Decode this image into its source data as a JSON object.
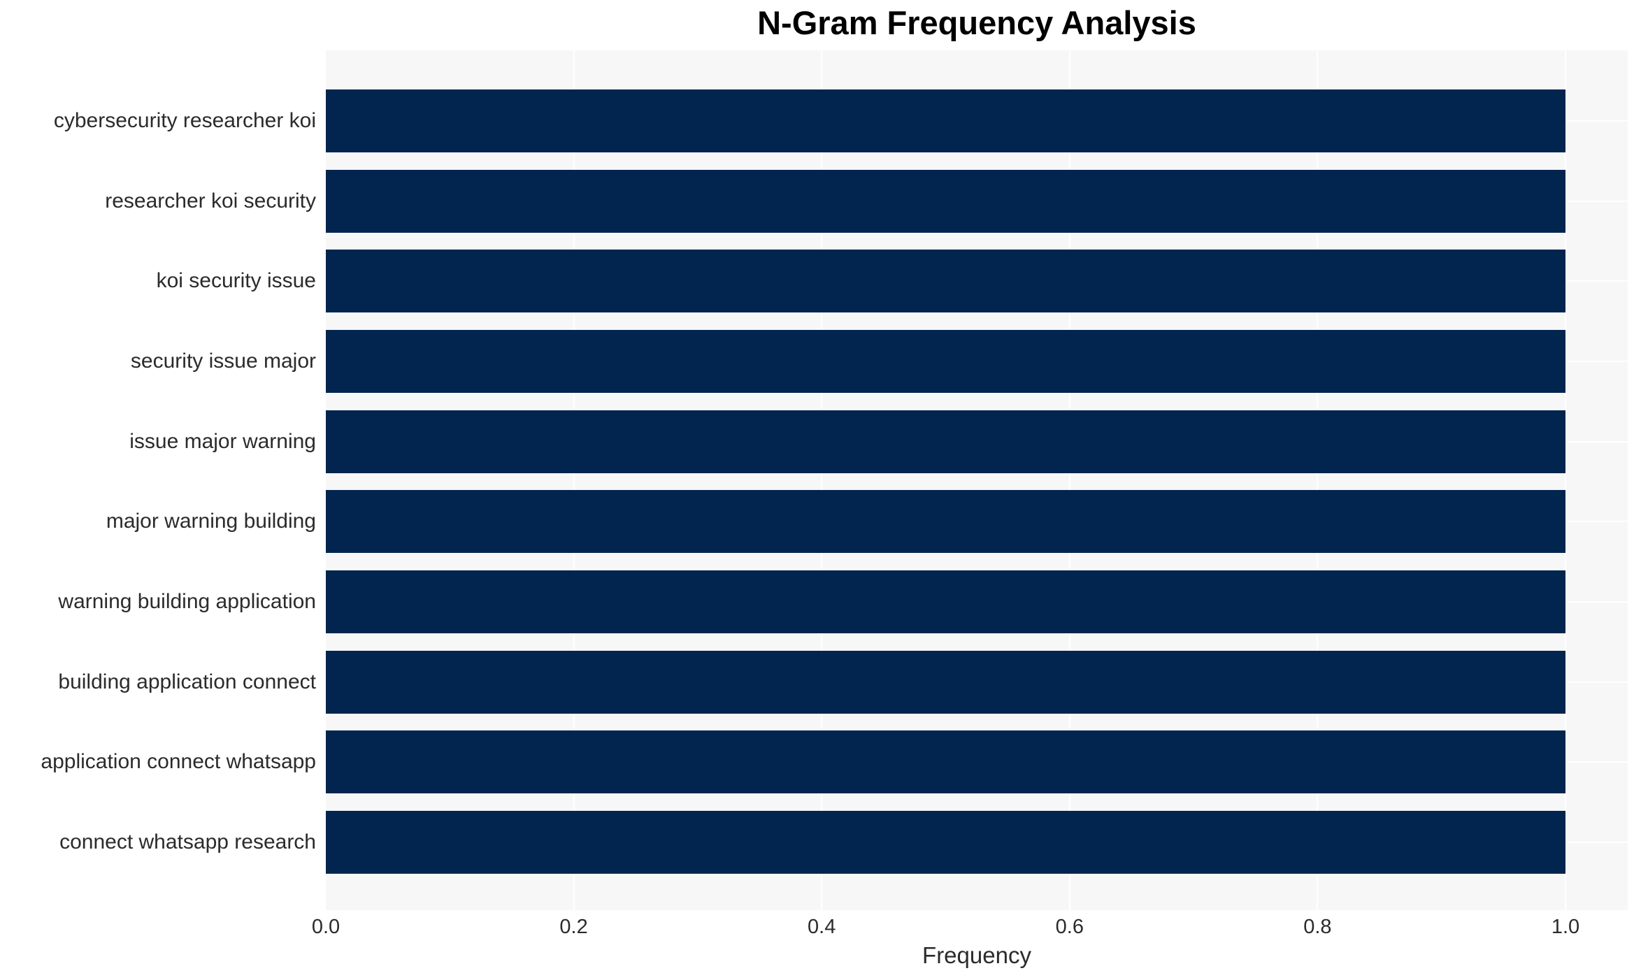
{
  "chart_data": {
    "type": "bar",
    "orientation": "horizontal",
    "title": "N-Gram Frequency Analysis",
    "xlabel": "Frequency",
    "ylabel": "",
    "categories": [
      "cybersecurity researcher koi",
      "researcher koi security",
      "koi security issue",
      "security issue major",
      "issue major warning",
      "major warning building",
      "warning building application",
      "building application connect",
      "application connect whatsapp",
      "connect whatsapp research"
    ],
    "values": [
      1.0,
      1.0,
      1.0,
      1.0,
      1.0,
      1.0,
      1.0,
      1.0,
      1.0,
      1.0
    ],
    "xlim": [
      0.0,
      1.05
    ],
    "xticks": [
      "0.0",
      "0.2",
      "0.4",
      "0.6",
      "0.8",
      "1.0"
    ],
    "grid": true,
    "legend": false,
    "colors": {
      "bar": "#02254f",
      "plot_background": "#f7f7f8",
      "gridline": "#ffffff",
      "title_text": "#000000",
      "axis_text": "#2b2b2b",
      "figure_background": "#ffffff"
    }
  }
}
